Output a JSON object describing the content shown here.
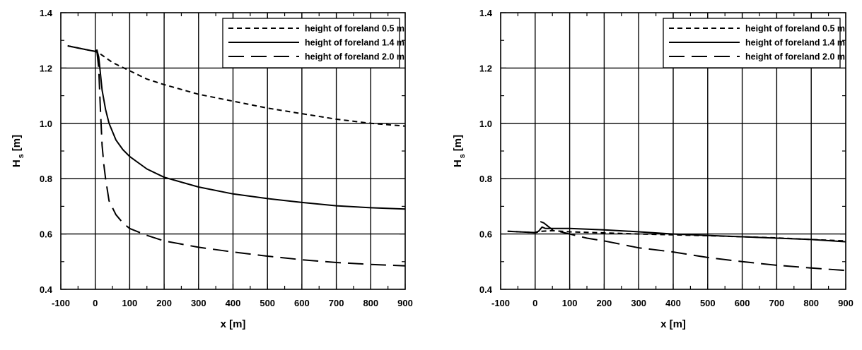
{
  "chart_data": [
    {
      "type": "line",
      "title": "",
      "xlabel": "x [m]",
      "ylabel_main": "H",
      "ylabel_sub": "s",
      "ylabel_unit": "[m]",
      "xlim": [
        -100,
        900
      ],
      "ylim": [
        0.4,
        1.4
      ],
      "xticks": [
        -100,
        0,
        100,
        200,
        300,
        400,
        500,
        600,
        700,
        800,
        900
      ],
      "yticks": [
        "0.4",
        "0.6",
        "0.8",
        "1.0",
        "1.2",
        "1.4"
      ],
      "grid": true,
      "legend_position": "top-right",
      "series": [
        {
          "name": "height of foreland 0.5 m",
          "dash": "short-dash",
          "x": [
            -80,
            -40,
            0,
            10,
            50,
            100,
            150,
            200,
            300,
            400,
            500,
            600,
            700,
            800,
            900
          ],
          "y": [
            1.28,
            1.27,
            1.26,
            1.255,
            1.22,
            1.19,
            1.16,
            1.14,
            1.105,
            1.08,
            1.055,
            1.035,
            1.015,
            1.0,
            0.99
          ]
        },
        {
          "name": "height of foreland 1.4 m",
          "dash": "solid",
          "x": [
            -80,
            -40,
            0,
            5,
            10,
            15,
            20,
            30,
            40,
            60,
            80,
            100,
            150,
            200,
            300,
            400,
            500,
            600,
            700,
            800,
            900
          ],
          "y": [
            1.28,
            1.27,
            1.26,
            1.265,
            1.24,
            1.18,
            1.12,
            1.05,
            1.0,
            0.94,
            0.905,
            0.88,
            0.835,
            0.805,
            0.77,
            0.745,
            0.728,
            0.714,
            0.702,
            0.695,
            0.69
          ]
        },
        {
          "name": "height of foreland 2.0 m",
          "dash": "long-dash",
          "x": [
            5,
            10,
            15,
            20,
            25,
            30,
            40,
            60,
            80,
            100,
            150,
            200,
            300,
            400,
            500,
            600,
            700,
            800,
            900
          ],
          "y": [
            1.26,
            1.2,
            1.05,
            0.92,
            0.85,
            0.8,
            0.72,
            0.67,
            0.64,
            0.62,
            0.595,
            0.575,
            0.552,
            0.535,
            0.52,
            0.507,
            0.497,
            0.49,
            0.485
          ]
        }
      ]
    },
    {
      "type": "line",
      "title": "",
      "xlabel": "x [m]",
      "ylabel_main": "H",
      "ylabel_sub": "s",
      "ylabel_unit": "[m]",
      "xlim": [
        -100,
        900
      ],
      "ylim": [
        0.4,
        1.4
      ],
      "xticks": [
        -100,
        0,
        100,
        200,
        300,
        400,
        500,
        600,
        700,
        800,
        900
      ],
      "yticks": [
        "0.4",
        "0.6",
        "0.8",
        "1.0",
        "1.2",
        "1.4"
      ],
      "grid": true,
      "legend_position": "top-right",
      "series": [
        {
          "name": "height of foreland 0.5 m",
          "dash": "short-dash",
          "x": [
            -80,
            0,
            20,
            50,
            100,
            200,
            300,
            400,
            500,
            600,
            700,
            800,
            900
          ],
          "y": [
            0.61,
            0.605,
            0.61,
            0.612,
            0.608,
            0.604,
            0.6,
            0.597,
            0.594,
            0.59,
            0.586,
            0.58,
            0.575
          ]
        },
        {
          "name": "height of foreland 1.4 m",
          "dash": "solid",
          "x": [
            -80,
            0,
            10,
            20,
            30,
            50,
            100,
            200,
            300,
            400,
            500,
            600,
            700,
            800,
            900
          ],
          "y": [
            0.61,
            0.605,
            0.61,
            0.625,
            0.62,
            0.62,
            0.62,
            0.615,
            0.608,
            0.6,
            0.595,
            0.59,
            0.585,
            0.58,
            0.572
          ]
        },
        {
          "name": "height of foreland 2.0 m",
          "dash": "long-dash",
          "x": [
            15,
            25,
            35,
            50,
            100,
            150,
            200,
            300,
            400,
            500,
            600,
            700,
            800,
            900
          ],
          "y": [
            0.645,
            0.64,
            0.63,
            0.615,
            0.6,
            0.585,
            0.575,
            0.55,
            0.535,
            0.515,
            0.5,
            0.487,
            0.477,
            0.468
          ]
        }
      ]
    }
  ]
}
